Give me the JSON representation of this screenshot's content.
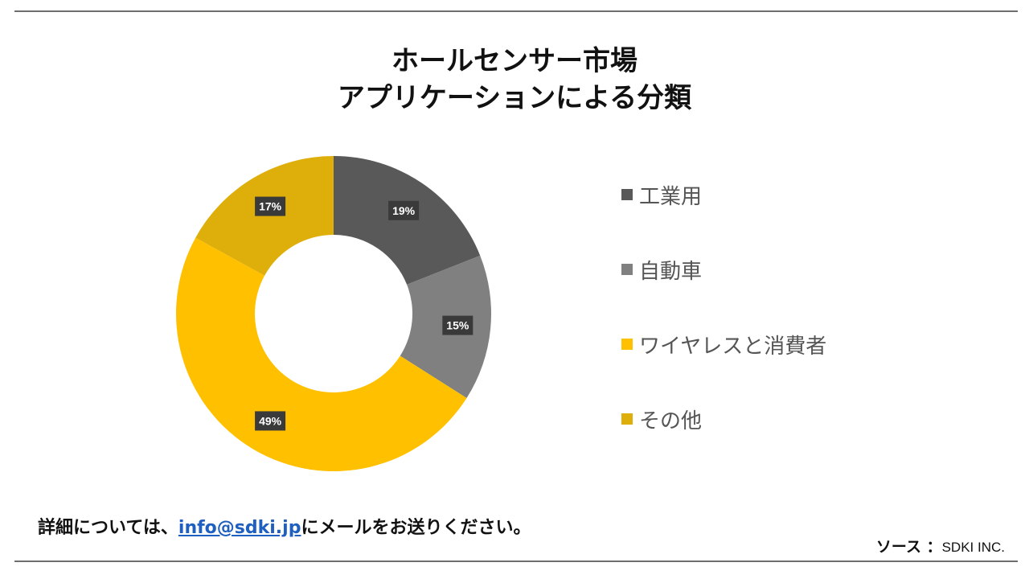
{
  "title_line1": "ホールセンサー市場",
  "title_line2": "アプリケーションによる分類",
  "chart_data": {
    "type": "pie",
    "donut": true,
    "categories": [
      "工業用",
      "自動車",
      "ワイヤレスと消費者",
      "その他"
    ],
    "values": [
      19,
      15,
      49,
      17
    ],
    "labels": [
      "19%",
      "15%",
      "49%",
      "17%"
    ],
    "colors": [
      "#595959",
      "#808080",
      "#ffc000",
      "#deae0a"
    ],
    "legend_position": "right"
  },
  "footer": {
    "prefix": "詳細については、",
    "email": "info@sdki.jp",
    "suffix": "にメールをお送りください。"
  },
  "source": {
    "key": "ソース ：",
    "value": "SDKI INC."
  }
}
